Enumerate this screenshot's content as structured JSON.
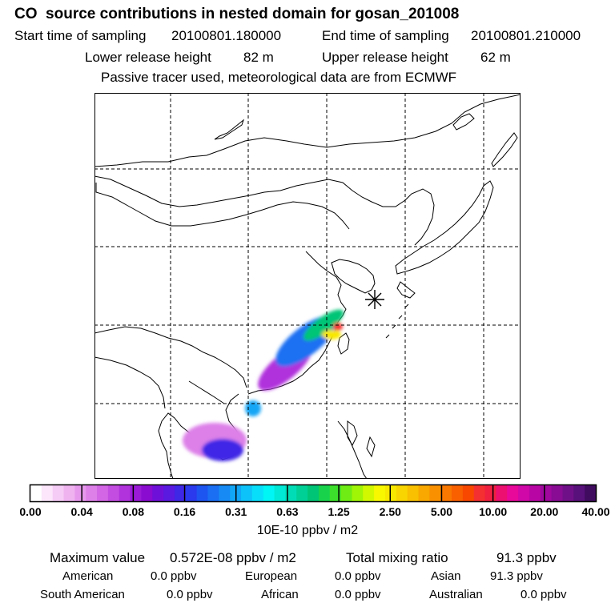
{
  "header": {
    "title": "CO  source contributions in nested domain for gosan_201008",
    "start_label": "Start time of sampling",
    "start_value": "20100801.180000",
    "end_label": "End time of sampling",
    "end_value": "20100801.210000",
    "lower_label": "Lower release height",
    "lower_value": "82 m",
    "upper_label": "Upper release height",
    "upper_value": "62 m",
    "note": "Passive tracer used, meteorological data are from ECMWF"
  },
  "colorbar": {
    "ticks": [
      "0.00",
      "0.04",
      "0.08",
      "0.16",
      "0.31",
      "0.63",
      "1.25",
      "2.50",
      "5.00",
      "10.00",
      "20.00",
      "40.00"
    ],
    "colors": [
      "#ffffff",
      "#fbe6fb",
      "#f5ccf5",
      "#efb3f0",
      "#e699ec",
      "#dd80e8",
      "#d266e4",
      "#c34de0",
      "#b033dc",
      "#9a1ad6",
      "#8a0cd0",
      "#6f10d8",
      "#5a1ae0",
      "#3f27e6",
      "#2a3aec",
      "#1d55f0",
      "#1a6ff2",
      "#178af4",
      "#12a6f6",
      "#0dc2f8",
      "#08defa",
      "#00f5f5",
      "#00e8d6",
      "#00dcb6",
      "#00d096",
      "#00c476",
      "#18d24c",
      "#3ce02c",
      "#6eec14",
      "#a0f406",
      "#d2f800",
      "#f8f800",
      "#f8e800",
      "#f8d400",
      "#f8c000",
      "#f8a800",
      "#f89000",
      "#f87800",
      "#f86000",
      "#f84800",
      "#f43030",
      "#f02040",
      "#ec1070",
      "#e8089a",
      "#d008a8",
      "#b806a4",
      "#a0089e",
      "#880c94",
      "#701088",
      "#58107a",
      "#400c60"
    ],
    "units": "10E-10 ppbv / m2"
  },
  "summary": {
    "max_label": "Maximum value",
    "max_value": "0.572E-08 ppbv / m2",
    "total_label": "Total mixing ratio",
    "total_value": "91.3 ppbv",
    "regions": [
      {
        "name": "American",
        "value": "0.0 ppbv"
      },
      {
        "name": "European",
        "value": "0.0 ppbv"
      },
      {
        "name": "Asian",
        "value": "91.3 ppbv"
      },
      {
        "name": "South American",
        "value": "0.0 ppbv"
      },
      {
        "name": "African",
        "value": "0.0 ppbv"
      },
      {
        "name": "Australian",
        "value": "0.0 ppbv"
      }
    ]
  }
}
